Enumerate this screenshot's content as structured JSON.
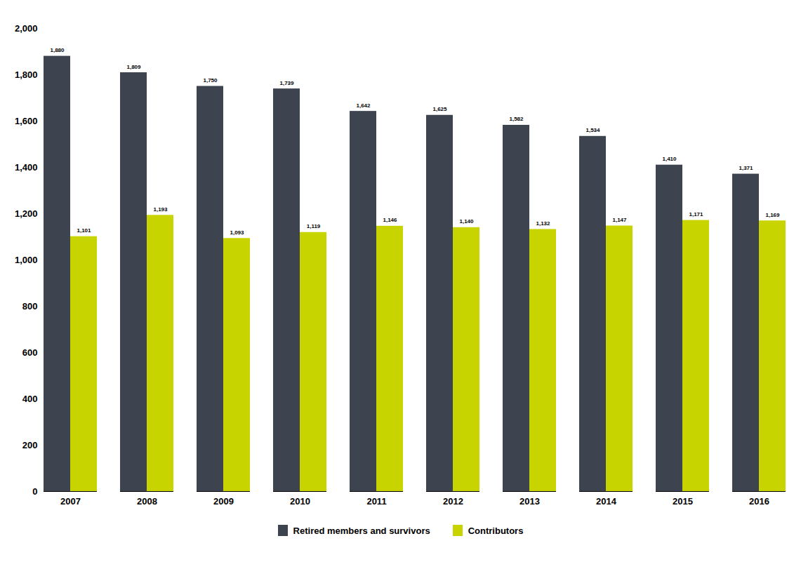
{
  "chart_data": {
    "type": "bar",
    "categories": [
      "2007",
      "2008",
      "2009",
      "2010",
      "2011",
      "2012",
      "2013",
      "2014",
      "2015",
      "2016"
    ],
    "series": [
      {
        "name": "Retired members and survivors",
        "color": "#3d4450",
        "values": [
          1880,
          1809,
          1750,
          1739,
          1642,
          1625,
          1582,
          1534,
          1410,
          1371
        ],
        "value_labels": [
          "1,880",
          "1,809",
          "1,750",
          "1,739",
          "1,642",
          "1,625",
          "1,582",
          "1,534",
          "1,410",
          "1,371"
        ]
      },
      {
        "name": "Contributors",
        "color": "#c8d400",
        "values": [
          1101,
          1193,
          1093,
          1119,
          1146,
          1140,
          1132,
          1147,
          1171,
          1169
        ],
        "value_labels": [
          "1,101",
          "1,193",
          "1,093",
          "1,119",
          "1,146",
          "1,140",
          "1,132",
          "1,147",
          "1,171",
          "1,169"
        ]
      }
    ],
    "ylim": [
      0,
      2000
    ],
    "yticks": [
      0,
      200,
      400,
      600,
      800,
      {
        "value": 1000,
        "label": "1,000"
      },
      {
        "value": 1200,
        "label": "1,200"
      },
      {
        "value": 1400,
        "label": "1,400"
      },
      {
        "value": 1600,
        "label": "1,600"
      },
      {
        "value": 1800,
        "label": "1,800"
      },
      {
        "value": 2000,
        "label": "2,000"
      }
    ],
    "grid": false,
    "legend": "bottom",
    "data_labels": true
  }
}
